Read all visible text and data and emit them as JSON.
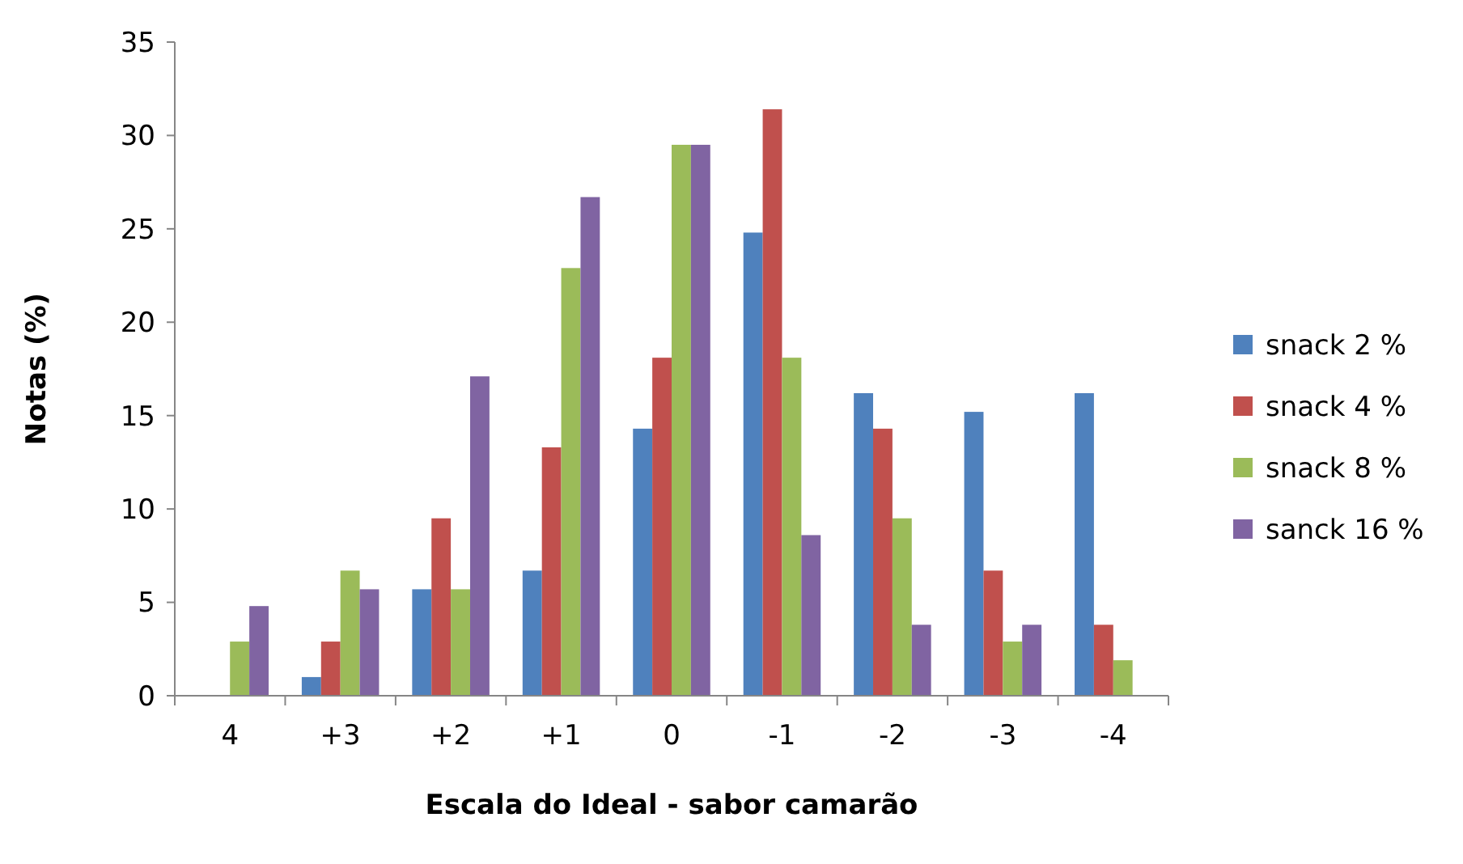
{
  "chart_data": {
    "type": "bar",
    "xlabel": "Escala do Ideal - sabor camarão",
    "ylabel": "Notas (%)",
    "categories": [
      "4",
      "+3",
      "+2",
      "+1",
      "0",
      "-1",
      "-2",
      "-3",
      "-4"
    ],
    "series": [
      {
        "name": "snack 2 %",
        "color": "#4f81bd",
        "values": [
          0,
          1.0,
          5.7,
          6.7,
          14.3,
          24.8,
          16.2,
          15.2,
          16.2
        ]
      },
      {
        "name": "snack 4 %",
        "color": "#c0504d",
        "values": [
          0,
          2.9,
          9.5,
          13.3,
          18.1,
          31.4,
          14.3,
          6.7,
          3.8
        ]
      },
      {
        "name": "snack 8 %",
        "color": "#9bbb59",
        "values": [
          2.9,
          6.7,
          5.7,
          22.9,
          29.5,
          18.1,
          9.5,
          2.9,
          1.9
        ]
      },
      {
        "name": "sanck 16 %",
        "color": "#8064a2",
        "values": [
          4.8,
          5.7,
          17.1,
          26.7,
          29.5,
          8.6,
          3.8,
          3.8,
          0
        ]
      }
    ],
    "ylim": [
      0,
      35
    ],
    "yticks": [
      0,
      5,
      10,
      15,
      20,
      25,
      30,
      35
    ],
    "grid": false,
    "legend": "right"
  }
}
